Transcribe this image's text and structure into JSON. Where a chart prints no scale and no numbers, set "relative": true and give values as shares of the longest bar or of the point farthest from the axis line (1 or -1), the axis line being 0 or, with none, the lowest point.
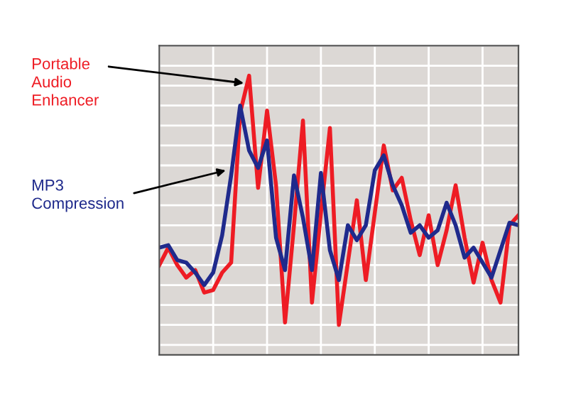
{
  "chart_data": {
    "type": "line",
    "relative": true,
    "grid": true,
    "tick_labels": false,
    "marker": "none",
    "line_style": "solid",
    "categories": [
      null,
      null,
      null,
      null,
      null,
      null,
      null,
      null,
      null,
      null,
      null,
      null,
      null,
      null,
      null,
      null,
      null,
      null,
      null,
      null,
      null,
      null,
      null,
      null,
      null,
      null,
      null,
      null,
      null,
      null,
      null,
      null,
      null,
      null,
      null,
      null,
      null,
      null,
      null,
      null,
      null
    ],
    "series": [
      {
        "name": "Portable Audio Enhancer",
        "color": "#ee1c24",
        "values": [
          0.24,
          0.31,
          0.24,
          0.19,
          0.22,
          0.13,
          0.14,
          0.21,
          0.25,
          0.85,
          1,
          0.55,
          0.86,
          0.56,
          0.01,
          0.4,
          0.82,
          0.09,
          0.45,
          0.79,
          0,
          0.25,
          0.5,
          0.18,
          0.45,
          0.72,
          0.54,
          0.59,
          0.42,
          0.28,
          0.44,
          0.24,
          0.38,
          0.56,
          0.35,
          0.17,
          0.33,
          0.18,
          0.09,
          0.4,
          0.44
        ]
      },
      {
        "name": "MP3 Compression",
        "color": "#1f2a8c",
        "values": [
          0.31,
          0.32,
          0.26,
          0.25,
          0.21,
          0.16,
          0.21,
          0.36,
          0.6,
          0.88,
          0.7,
          0.63,
          0.74,
          0.35,
          0.22,
          0.6,
          0.43,
          0.22,
          0.61,
          0.3,
          0.18,
          0.4,
          0.34,
          0.4,
          0.62,
          0.68,
          0.56,
          0.48,
          0.37,
          0.4,
          0.35,
          0.38,
          0.49,
          0.4,
          0.27,
          0.31,
          0.25,
          0.19,
          0.3,
          0.41,
          0.4
        ]
      }
    ]
  }
}
